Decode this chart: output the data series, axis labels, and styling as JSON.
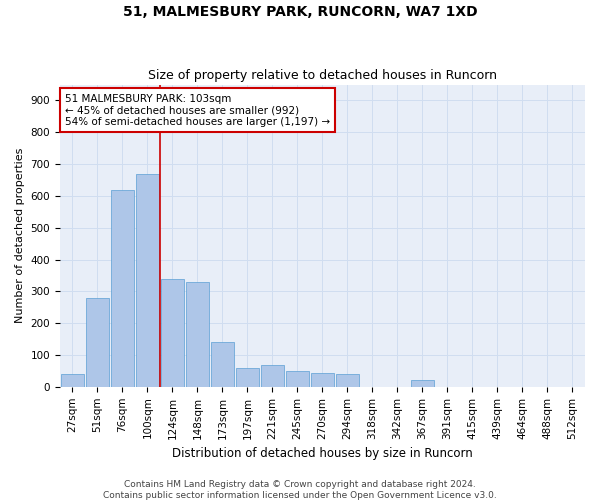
{
  "title1": "51, MALMESBURY PARK, RUNCORN, WA7 1XD",
  "title2": "Size of property relative to detached houses in Runcorn",
  "xlabel": "Distribution of detached houses by size in Runcorn",
  "ylabel": "Number of detached properties",
  "categories": [
    "27sqm",
    "51sqm",
    "76sqm",
    "100sqm",
    "124sqm",
    "148sqm",
    "173sqm",
    "197sqm",
    "221sqm",
    "245sqm",
    "270sqm",
    "294sqm",
    "318sqm",
    "342sqm",
    "367sqm",
    "391sqm",
    "415sqm",
    "439sqm",
    "464sqm",
    "488sqm",
    "512sqm"
  ],
  "values": [
    40,
    280,
    620,
    670,
    340,
    330,
    140,
    60,
    70,
    50,
    45,
    40,
    0,
    0,
    20,
    0,
    0,
    0,
    0,
    0,
    0
  ],
  "bar_color": "#aec6e8",
  "bar_edge_color": "#5a9fd4",
  "grid_color": "#d0ddf0",
  "bg_color": "#e8eef8",
  "vline_x": 3.5,
  "vline_color": "#cc0000",
  "annotation_text": "51 MALMESBURY PARK: 103sqm\n← 45% of detached houses are smaller (992)\n54% of semi-detached houses are larger (1,197) →",
  "annotation_box_color": "#cc0000",
  "ylim": [
    0,
    950
  ],
  "yticks": [
    0,
    100,
    200,
    300,
    400,
    500,
    600,
    700,
    800,
    900
  ],
  "footer": "Contains HM Land Registry data © Crown copyright and database right 2024.\nContains public sector information licensed under the Open Government Licence v3.0.",
  "title1_fontsize": 10,
  "title2_fontsize": 9,
  "xlabel_fontsize": 8.5,
  "ylabel_fontsize": 8,
  "tick_fontsize": 7.5,
  "annotation_fontsize": 7.5,
  "footer_fontsize": 6.5
}
